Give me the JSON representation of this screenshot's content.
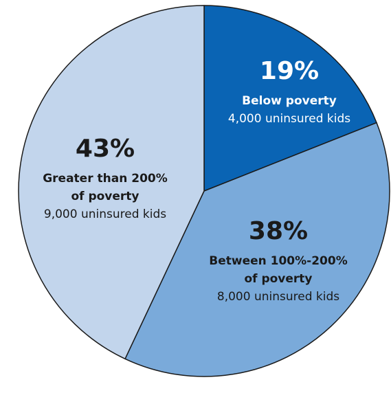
{
  "chart_data": {
    "type": "pie",
    "slices": [
      {
        "percent_label": "19%",
        "value": 19,
        "category_lines": [
          "Below poverty"
        ],
        "count_label": "4,000 uninsured kids",
        "color": "#0a64b4",
        "text_color": "#ffffff"
      },
      {
        "percent_label": "38%",
        "value": 38,
        "category_lines": [
          "Between 100%-200%",
          "of poverty"
        ],
        "count_label": "8,000 uninsured kids",
        "color": "#7aaada",
        "text_color": "#1a1a1a"
      },
      {
        "percent_label": "43%",
        "value": 43,
        "category_lines": [
          "Greater than 200%",
          "of poverty"
        ],
        "count_label": "9,000 uninsured kids",
        "color": "#c2d5ec",
        "text_color": "#1a1a1a"
      }
    ],
    "start_angle_deg": 0,
    "direction": "clockwise",
    "stroke_color": "#1a1a1a"
  }
}
